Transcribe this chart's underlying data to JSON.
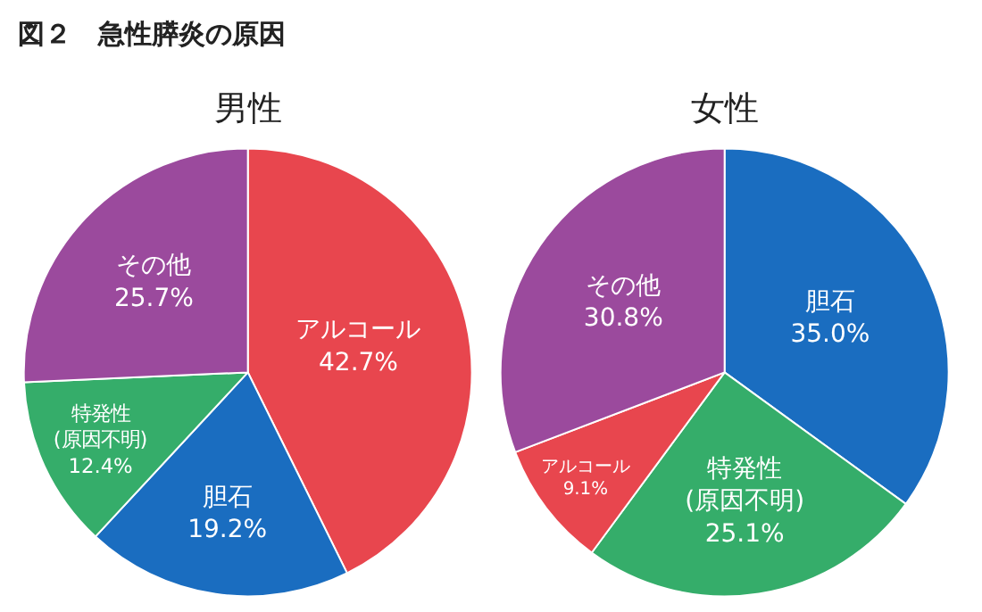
{
  "chart_data": [
    {
      "type": "pie",
      "title": "男性",
      "annotations": [
        "図２　急性膵炎の原因"
      ],
      "categories": [
        "アルコール",
        "胆石",
        "特発性\n(原因不明)",
        "その他"
      ],
      "values": [
        42.7,
        19.2,
        12.4,
        25.7
      ],
      "value_labels": [
        "42.7%",
        "19.2%",
        "12.4%",
        "25.7%"
      ],
      "colors": [
        "#e8464e",
        "#1a6dc0",
        "#35ad6a",
        "#9b4a9d"
      ]
    },
    {
      "type": "pie",
      "title": "女性",
      "categories": [
        "胆石",
        "特発性\n(原因不明)",
        "アルコール",
        "その他"
      ],
      "values": [
        35.0,
        25.1,
        9.1,
        30.8
      ],
      "value_labels": [
        "35.0%",
        "25.1%",
        "9.1%",
        "30.8%"
      ],
      "colors": [
        "#1a6dc0",
        "#35ad6a",
        "#e8464e",
        "#9b4a9d"
      ]
    }
  ]
}
